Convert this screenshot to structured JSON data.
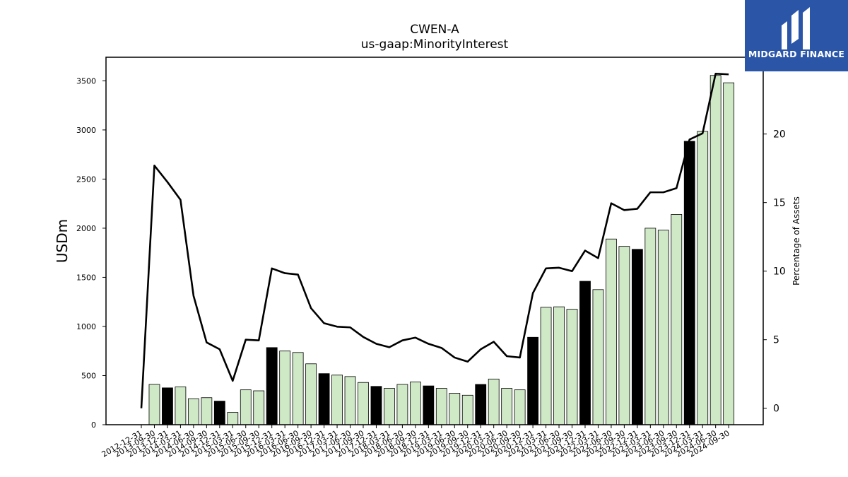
{
  "header": {
    "title": "CWEN-A",
    "subtitle": "us-gaap:MinorityInterest"
  },
  "logo": {
    "text": "MIDGARD FINANCE",
    "icon": "midgard-m-logo-icon",
    "background": "#2b56a8"
  },
  "chart_data": {
    "type": "bar",
    "title": "CWEN-A",
    "subtitle": "us-gaap:MinorityInterest",
    "ylabel": "USDm",
    "y2label": "Percentage of Assets",
    "ylim": [
      0,
      3740
    ],
    "y2lim": [
      -1.2,
      25.6
    ],
    "yticks": [
      "0",
      "500",
      "1000",
      "1500",
      "2000",
      "2500",
      "3000",
      "3500"
    ],
    "y2ticks": [
      "0",
      "5",
      "10",
      "15",
      "20"
    ],
    "bar_color_quarter": "#cfe8c6",
    "bar_color_year_end": "#000000",
    "line_color": "#000000",
    "grid": false,
    "categories": [
      "2012-12-31",
      "2013-09-30",
      "2013-12-31",
      "2014-03-31",
      "2014-06-30",
      "2014-09-30",
      "2014-12-31",
      "2015-03-31",
      "2015-06-30",
      "2015-09-30",
      "2015-12-31",
      "2016-03-31",
      "2016-06-30",
      "2016-09-30",
      "2016-12-31",
      "2017-03-31",
      "2017-06-30",
      "2017-09-30",
      "2017-12-31",
      "2018-03-31",
      "2018-06-30",
      "2018-09-30",
      "2018-12-31",
      "2019-03-31",
      "2019-06-30",
      "2019-09-30",
      "2019-12-31",
      "2020-03-31",
      "2020-06-30",
      "2020-09-30",
      "2020-12-31",
      "2021-03-31",
      "2021-06-30",
      "2021-09-30",
      "2021-12-31",
      "2022-03-31",
      "2022-06-30",
      "2022-09-30",
      "2022-12-31",
      "2023-03-31",
      "2023-06-30",
      "2023-09-30",
      "2023-12-31",
      "2024-03-31",
      "2024-06-30",
      "2024-09-30"
    ],
    "series": [
      {
        "type": "bar",
        "axis": "left",
        "values": [
          null,
          410,
          375,
          385,
          265,
          275,
          240,
          125,
          355,
          345,
          785,
          750,
          735,
          620,
          520,
          505,
          490,
          430,
          390,
          370,
          410,
          435,
          395,
          370,
          320,
          300,
          410,
          465,
          370,
          355,
          890,
          1195,
          1200,
          1175,
          1460,
          1375,
          1890,
          1815,
          1785,
          2000,
          1980,
          2140,
          2885,
          2985,
          3555,
          3480
        ]
      },
      {
        "type": "line",
        "axis": "right",
        "values": [
          0,
          17.7,
          16.5,
          15.2,
          8.2,
          4.8,
          4.3,
          2.0,
          5.0,
          4.95,
          10.2,
          9.85,
          9.75,
          7.3,
          6.2,
          5.95,
          5.9,
          5.2,
          4.7,
          4.45,
          4.95,
          5.15,
          4.7,
          4.4,
          3.7,
          3.4,
          4.3,
          4.85,
          3.8,
          3.7,
          8.4,
          10.2,
          10.25,
          10.0,
          11.5,
          10.95,
          14.95,
          14.45,
          14.55,
          15.75,
          15.75,
          16.05,
          19.6,
          20.05,
          24.4,
          24.35
        ]
      }
    ]
  }
}
